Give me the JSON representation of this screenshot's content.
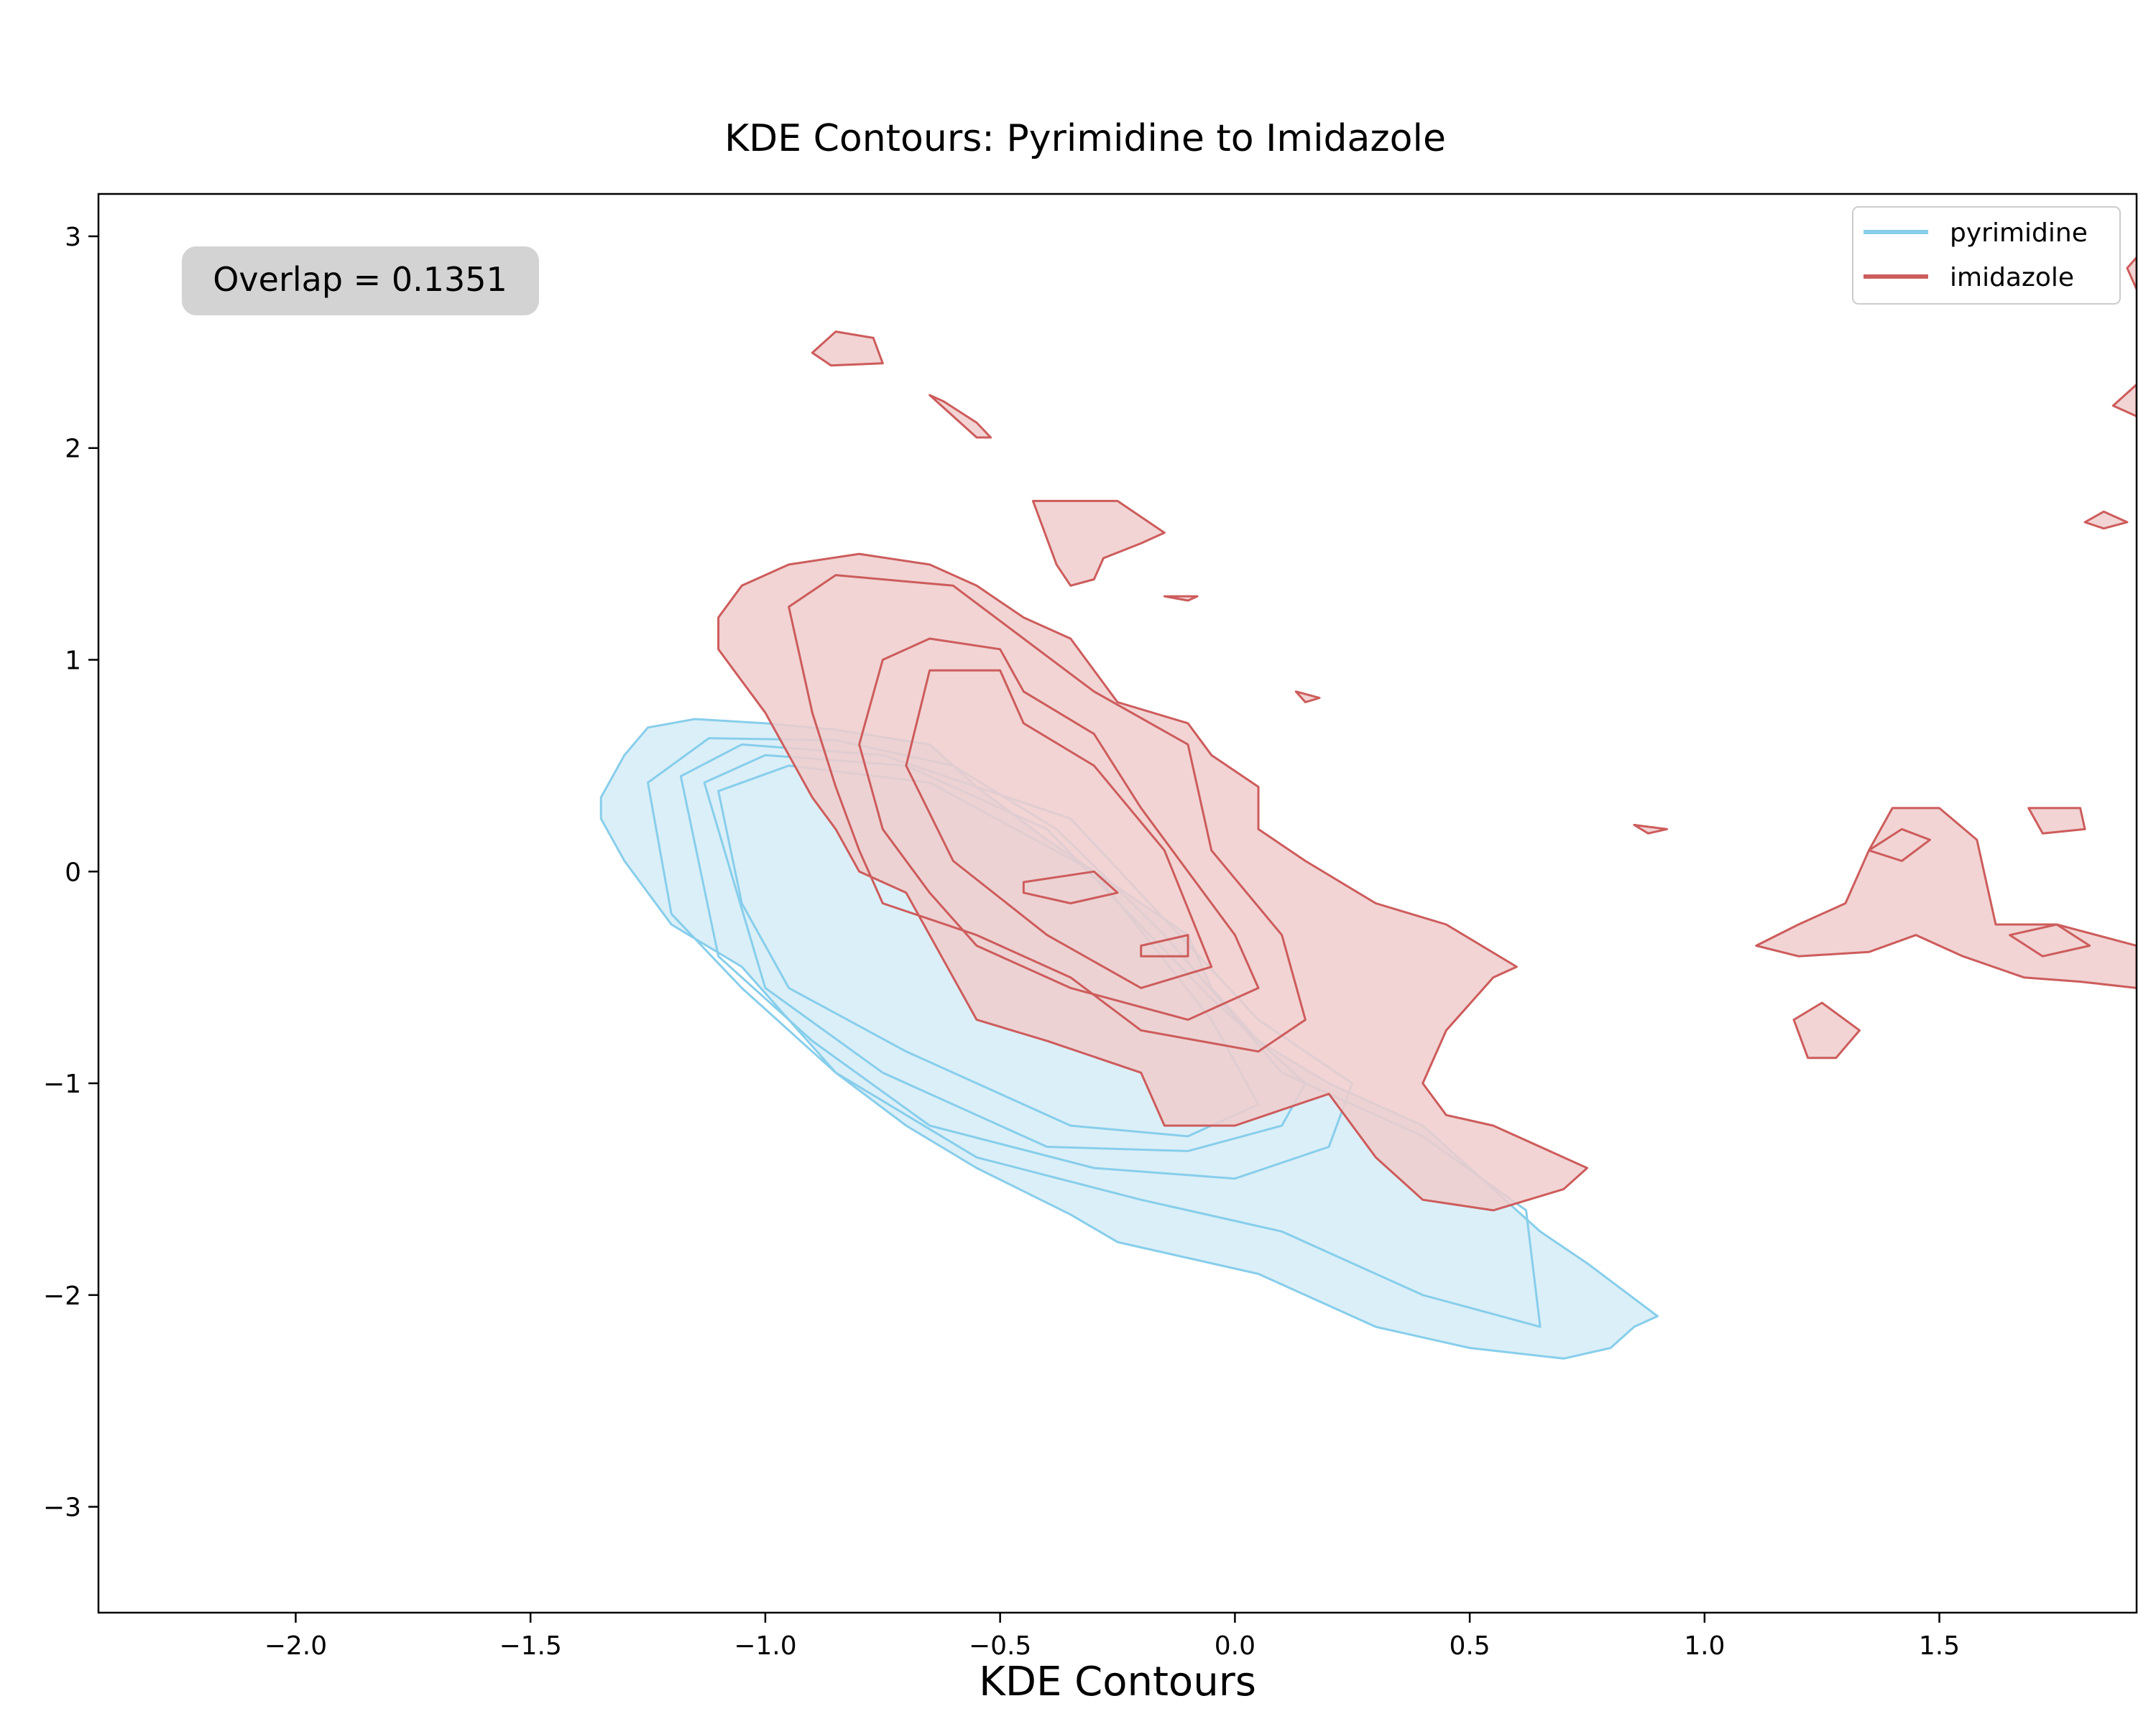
{
  "colors": {
    "pyrimidine_line": "#87ceeb",
    "pyrimidine_fill": "#dbeff8",
    "imidazole_line": "#cd5c5c",
    "imidazole_fill": "#f0cccc",
    "annotation_box": "#d3d3d3"
  },
  "chart_data": {
    "type": "contour",
    "title": "KDE Contours: Pyrimidine to Imidazole",
    "xlabel": "KDE Contours",
    "ylabel": "",
    "xlim": [
      -2.42,
      1.92
    ],
    "ylim": [
      -3.5,
      3.2
    ],
    "xticks": [
      -2.0,
      -1.5,
      -1.0,
      -0.5,
      0.0,
      0.5,
      1.0,
      1.5
    ],
    "xtick_labels": [
      "−2.0",
      "−1.5",
      "−1.0",
      "−0.5",
      "0.0",
      "0.5",
      "1.0",
      "1.5"
    ],
    "yticks": [
      3,
      2,
      1,
      0,
      -1,
      -2,
      -3
    ],
    "ytick_labels": [
      "3",
      "2",
      "1",
      "0",
      "−1",
      "−2",
      "−3"
    ],
    "grid": false,
    "legend_position": "top-right",
    "annotation": "Overlap = 0.1351",
    "series": [
      {
        "name": "pyrimidine",
        "contours": [
          [
            [
              -1.35,
              0.35
            ],
            [
              -1.3,
              0.55
            ],
            [
              -1.25,
              0.68
            ],
            [
              -1.15,
              0.72
            ],
            [
              -1.0,
              0.7
            ],
            [
              -0.85,
              0.67
            ],
            [
              -0.65,
              0.6
            ],
            [
              -0.55,
              0.4
            ],
            [
              -0.4,
              0.15
            ],
            [
              -0.2,
              -0.15
            ],
            [
              -0.1,
              -0.3
            ],
            [
              -0.05,
              -0.55
            ],
            [
              0.05,
              -0.8
            ],
            [
              0.2,
              -1.0
            ],
            [
              0.4,
              -1.2
            ],
            [
              0.55,
              -1.5
            ],
            [
              0.65,
              -1.7
            ],
            [
              0.75,
              -1.85
            ],
            [
              0.9,
              -2.1
            ],
            [
              0.85,
              -2.15
            ],
            [
              0.8,
              -2.25
            ],
            [
              0.7,
              -2.3
            ],
            [
              0.5,
              -2.25
            ],
            [
              0.4,
              -2.2
            ],
            [
              0.3,
              -2.15
            ],
            [
              0.2,
              -2.05
            ],
            [
              0.05,
              -1.9
            ],
            [
              -0.15,
              -1.8
            ],
            [
              -0.25,
              -1.75
            ],
            [
              -0.35,
              -1.62
            ],
            [
              -0.55,
              -1.4
            ],
            [
              -0.7,
              -1.2
            ],
            [
              -0.85,
              -0.95
            ],
            [
              -0.95,
              -0.7
            ],
            [
              -1.05,
              -0.45
            ],
            [
              -1.2,
              -0.25
            ],
            [
              -1.3,
              0.05
            ],
            [
              -1.35,
              0.25
            ]
          ],
          [
            [
              -1.25,
              0.42
            ],
            [
              -1.12,
              0.63
            ],
            [
              -0.85,
              0.62
            ],
            [
              -0.6,
              0.5
            ],
            [
              -0.38,
              0.2
            ],
            [
              -0.15,
              -0.3
            ],
            [
              0.1,
              -0.95
            ],
            [
              0.4,
              -1.25
            ],
            [
              0.62,
              -1.6
            ],
            [
              0.65,
              -2.15
            ],
            [
              0.4,
              -2.0
            ],
            [
              0.1,
              -1.7
            ],
            [
              -0.2,
              -1.55
            ],
            [
              -0.55,
              -1.35
            ],
            [
              -0.85,
              -0.95
            ],
            [
              -1.05,
              -0.55
            ],
            [
              -1.2,
              -0.2
            ]
          ],
          [
            [
              -1.18,
              0.45
            ],
            [
              -1.05,
              0.6
            ],
            [
              -0.75,
              0.55
            ],
            [
              -0.35,
              0.25
            ],
            [
              0.05,
              -0.7
            ],
            [
              0.25,
              -1.0
            ],
            [
              0.2,
              -1.3
            ],
            [
              0.0,
              -1.45
            ],
            [
              -0.3,
              -1.4
            ],
            [
              -0.65,
              -1.2
            ],
            [
              -0.9,
              -0.8
            ],
            [
              -1.1,
              -0.4
            ]
          ],
          [
            [
              -1.13,
              0.42
            ],
            [
              -1.0,
              0.55
            ],
            [
              -0.7,
              0.5
            ],
            [
              -0.4,
              0.2
            ],
            [
              -0.05,
              -0.6
            ],
            [
              0.15,
              -1.0
            ],
            [
              0.1,
              -1.2
            ],
            [
              -0.1,
              -1.32
            ],
            [
              -0.4,
              -1.3
            ],
            [
              -0.75,
              -0.95
            ],
            [
              -1.0,
              -0.55
            ]
          ],
          [
            [
              -1.1,
              0.38
            ],
            [
              -0.95,
              0.5
            ],
            [
              -0.65,
              0.42
            ],
            [
              -0.3,
              0.0
            ],
            [
              -0.05,
              -0.7
            ],
            [
              0.05,
              -1.1
            ],
            [
              -0.1,
              -1.25
            ],
            [
              -0.35,
              -1.2
            ],
            [
              -0.7,
              -0.85
            ],
            [
              -0.95,
              -0.55
            ],
            [
              -1.05,
              -0.15
            ]
          ]
        ]
      },
      {
        "name": "imidazole",
        "contours": [
          [
            [
              -1.1,
              1.2
            ],
            [
              -1.05,
              1.35
            ],
            [
              -0.95,
              1.45
            ],
            [
              -0.8,
              1.5
            ],
            [
              -0.65,
              1.45
            ],
            [
              -0.55,
              1.35
            ],
            [
              -0.45,
              1.2
            ],
            [
              -0.35,
              1.1
            ],
            [
              -0.25,
              0.8
            ],
            [
              -0.1,
              0.7
            ],
            [
              -0.05,
              0.55
            ],
            [
              0.05,
              0.4
            ],
            [
              0.05,
              0.2
            ],
            [
              0.15,
              0.05
            ],
            [
              0.3,
              -0.15
            ],
            [
              0.45,
              -0.25
            ],
            [
              0.6,
              -0.45
            ],
            [
              0.55,
              -0.5
            ],
            [
              0.45,
              -0.75
            ],
            [
              0.4,
              -1.0
            ],
            [
              0.45,
              -1.15
            ],
            [
              0.55,
              -1.2
            ],
            [
              0.7,
              -1.35
            ],
            [
              0.75,
              -1.4
            ],
            [
              0.7,
              -1.5
            ],
            [
              0.55,
              -1.6
            ],
            [
              0.4,
              -1.55
            ],
            [
              0.3,
              -1.35
            ],
            [
              0.2,
              -1.05
            ],
            [
              0.0,
              -1.2
            ],
            [
              -0.15,
              -1.2
            ],
            [
              -0.2,
              -0.95
            ],
            [
              -0.4,
              -0.8
            ],
            [
              -0.55,
              -0.7
            ],
            [
              -0.6,
              -0.5
            ],
            [
              -0.7,
              -0.1
            ],
            [
              -0.8,
              0.0
            ],
            [
              -0.85,
              0.2
            ],
            [
              -0.9,
              0.35
            ],
            [
              -0.95,
              0.55
            ],
            [
              -1.0,
              0.75
            ],
            [
              -1.05,
              0.9
            ],
            [
              -1.1,
              1.05
            ]
          ],
          [
            [
              -0.95,
              1.25
            ],
            [
              -0.85,
              1.4
            ],
            [
              -0.6,
              1.35
            ],
            [
              -0.45,
              1.1
            ],
            [
              -0.3,
              0.85
            ],
            [
              -0.1,
              0.6
            ],
            [
              -0.05,
              0.1
            ],
            [
              0.1,
              -0.3
            ],
            [
              0.15,
              -0.7
            ],
            [
              0.05,
              -0.85
            ],
            [
              -0.2,
              -0.75
            ],
            [
              -0.35,
              -0.5
            ],
            [
              -0.55,
              -0.3
            ],
            [
              -0.75,
              -0.15
            ],
            [
              -0.8,
              0.1
            ],
            [
              -0.85,
              0.4
            ],
            [
              -0.9,
              0.75
            ]
          ],
          [
            [
              -0.75,
              1.0
            ],
            [
              -0.65,
              1.1
            ],
            [
              -0.5,
              1.05
            ],
            [
              -0.45,
              0.85
            ],
            [
              -0.3,
              0.65
            ],
            [
              -0.2,
              0.3
            ],
            [
              -0.1,
              0.0
            ],
            [
              0.0,
              -0.3
            ],
            [
              0.05,
              -0.55
            ],
            [
              -0.1,
              -0.7
            ],
            [
              -0.35,
              -0.55
            ],
            [
              -0.55,
              -0.35
            ],
            [
              -0.65,
              -0.1
            ],
            [
              -0.75,
              0.2
            ],
            [
              -0.8,
              0.6
            ]
          ],
          [
            [
              -0.65,
              0.95
            ],
            [
              -0.5,
              0.95
            ],
            [
              -0.45,
              0.7
            ],
            [
              -0.3,
              0.5
            ],
            [
              -0.15,
              0.1
            ],
            [
              -0.05,
              -0.45
            ],
            [
              -0.2,
              -0.55
            ],
            [
              -0.4,
              -0.3
            ],
            [
              -0.6,
              0.05
            ],
            [
              -0.7,
              0.5
            ]
          ],
          [
            [
              -0.45,
              -0.05
            ],
            [
              -0.3,
              0.0
            ],
            [
              -0.25,
              -0.1
            ],
            [
              -0.35,
              -0.15
            ],
            [
              -0.45,
              -0.1
            ]
          ],
          [
            [
              -0.2,
              -0.35
            ],
            [
              -0.1,
              -0.3
            ],
            [
              -0.1,
              -0.4
            ],
            [
              -0.2,
              -0.4
            ]
          ],
          [
            [
              -0.9,
              2.45
            ],
            [
              -0.85,
              2.55
            ],
            [
              -0.77,
              2.52
            ],
            [
              -0.75,
              2.4
            ],
            [
              -0.86,
              2.39
            ]
          ],
          [
            [
              -0.65,
              2.25
            ],
            [
              -0.6,
              2.15
            ],
            [
              -0.55,
              2.05
            ],
            [
              -0.52,
              2.05
            ],
            [
              -0.55,
              2.12
            ],
            [
              -0.62,
              2.22
            ]
          ],
          [
            [
              -0.43,
              1.75
            ],
            [
              -0.25,
              1.75
            ],
            [
              -0.15,
              1.6
            ],
            [
              -0.2,
              1.55
            ],
            [
              -0.28,
              1.48
            ],
            [
              -0.3,
              1.38
            ],
            [
              -0.35,
              1.35
            ],
            [
              -0.38,
              1.45
            ]
          ],
          [
            [
              -0.15,
              1.3
            ],
            [
              -0.08,
              1.3
            ],
            [
              -0.1,
              1.28
            ]
          ],
          [
            [
              0.13,
              0.85
            ],
            [
              0.18,
              0.82
            ],
            [
              0.15,
              0.8
            ]
          ],
          [
            [
              0.85,
              0.22
            ],
            [
              0.92,
              0.2
            ],
            [
              0.88,
              0.18
            ]
          ],
          [
            [
              1.11,
              -0.35
            ],
            [
              1.2,
              -0.25
            ],
            [
              1.3,
              -0.15
            ],
            [
              1.35,
              0.1
            ],
            [
              1.4,
              0.3
            ],
            [
              1.5,
              0.3
            ],
            [
              1.58,
              0.15
            ],
            [
              1.62,
              -0.25
            ],
            [
              1.75,
              -0.25
            ],
            [
              1.92,
              -0.35
            ],
            [
              1.92,
              -0.55
            ],
            [
              1.8,
              -0.52
            ],
            [
              1.68,
              -0.5
            ],
            [
              1.55,
              -0.4
            ],
            [
              1.45,
              -0.3
            ],
            [
              1.35,
              -0.38
            ],
            [
              1.2,
              -0.4
            ]
          ],
          [
            [
              1.35,
              0.1
            ],
            [
              1.42,
              0.2
            ],
            [
              1.48,
              0.15
            ],
            [
              1.42,
              0.05
            ]
          ],
          [
            [
              1.65,
              -0.3
            ],
            [
              1.75,
              -0.25
            ],
            [
              1.82,
              -0.35
            ],
            [
              1.72,
              -0.4
            ]
          ],
          [
            [
              1.69,
              0.3
            ],
            [
              1.8,
              0.3
            ],
            [
              1.81,
              0.2
            ],
            [
              1.72,
              0.18
            ]
          ],
          [
            [
              1.19,
              -0.7
            ],
            [
              1.25,
              -0.62
            ],
            [
              1.33,
              -0.75
            ],
            [
              1.28,
              -0.88
            ],
            [
              1.22,
              -0.88
            ]
          ],
          [
            [
              1.81,
              1.65
            ],
            [
              1.85,
              1.7
            ],
            [
              1.9,
              1.65
            ],
            [
              1.85,
              1.62
            ]
          ],
          [
            [
              1.87,
              2.2
            ],
            [
              1.92,
              2.3
            ],
            [
              1.92,
              2.15
            ]
          ],
          [
            [
              1.9,
              2.85
            ],
            [
              1.92,
              2.9
            ],
            [
              1.92,
              2.75
            ]
          ]
        ]
      }
    ]
  }
}
